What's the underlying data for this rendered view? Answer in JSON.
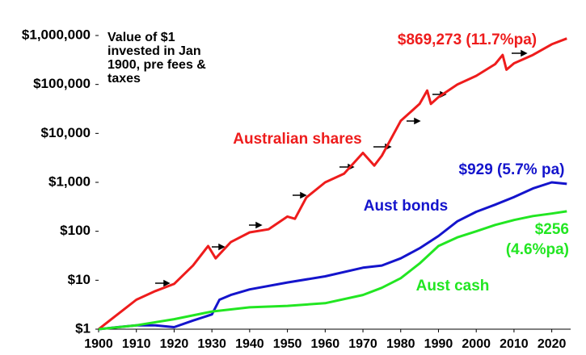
{
  "chart_data": {
    "type": "line",
    "title": "Value of $1 invested in Jan 1900, pre fees & taxes",
    "log_scale_y": true,
    "xlim": [
      1900,
      2025
    ],
    "xticks": [
      1900,
      1910,
      1920,
      1930,
      1940,
      1950,
      1960,
      1970,
      1980,
      1990,
      2000,
      2010,
      2020
    ],
    "ylim": [
      1,
      1000000
    ],
    "yticks": [
      {
        "value": 1,
        "label": "$1"
      },
      {
        "value": 10,
        "label": "$10"
      },
      {
        "value": 100,
        "label": "$100"
      },
      {
        "value": 1000,
        "label": "$1,000"
      },
      {
        "value": 10000,
        "label": "$10,000"
      },
      {
        "value": 100000,
        "label": "$100,000"
      },
      {
        "value": 1000000,
        "label": "$1,000,000"
      }
    ],
    "series": [
      {
        "name": "Australian shares",
        "color": "#ee1c1c",
        "end_label": [
          "$869,273 (11.7%pa)"
        ],
        "x": [
          1900,
          1905,
          1910,
          1915,
          1920,
          1925,
          1929,
          1931,
          1935,
          1940,
          1945,
          1950,
          1952,
          1955,
          1960,
          1965,
          1970,
          1973,
          1975,
          1980,
          1985,
          1987,
          1988,
          1990,
          1995,
          2000,
          2005,
          2007,
          2008,
          2010,
          2015,
          2020,
          2024
        ],
        "values": [
          1,
          2,
          4,
          6,
          8.4,
          20,
          50,
          28,
          60,
          95,
          110,
          200,
          180,
          490,
          1000,
          1500,
          4000,
          2200,
          3500,
          18000,
          40000,
          75000,
          40000,
          55000,
          100000,
          150000,
          260000,
          400000,
          200000,
          270000,
          400000,
          660000,
          869273
        ]
      },
      {
        "name": "Aust bonds",
        "color": "#1414cc",
        "end_label": [
          "$929 (5.7% pa)"
        ],
        "x": [
          1900,
          1905,
          1910,
          1915,
          1920,
          1925,
          1930,
          1932,
          1935,
          1940,
          1950,
          1960,
          1970,
          1975,
          1980,
          1985,
          1990,
          1995,
          2000,
          2005,
          2010,
          2015,
          2020,
          2024
        ],
        "values": [
          1,
          1.1,
          1.2,
          1.2,
          1.1,
          1.5,
          2,
          4,
          5,
          6.5,
          9,
          12,
          18,
          20,
          28,
          45,
          80,
          160,
          250,
          350,
          500,
          750,
          1000,
          929
        ]
      },
      {
        "name": "Aust cash",
        "color": "#22e622",
        "end_label": [
          "$256",
          "(4.6%pa)"
        ],
        "x": [
          1900,
          1910,
          1920,
          1930,
          1940,
          1950,
          1960,
          1970,
          1975,
          1980,
          1985,
          1990,
          1995,
          2000,
          2005,
          2010,
          2015,
          2020,
          2024
        ],
        "values": [
          1,
          1.2,
          1.6,
          2.3,
          2.8,
          3.0,
          3.4,
          5,
          7,
          11,
          22,
          50,
          75,
          100,
          135,
          170,
          205,
          230,
          256
        ]
      }
    ]
  }
}
